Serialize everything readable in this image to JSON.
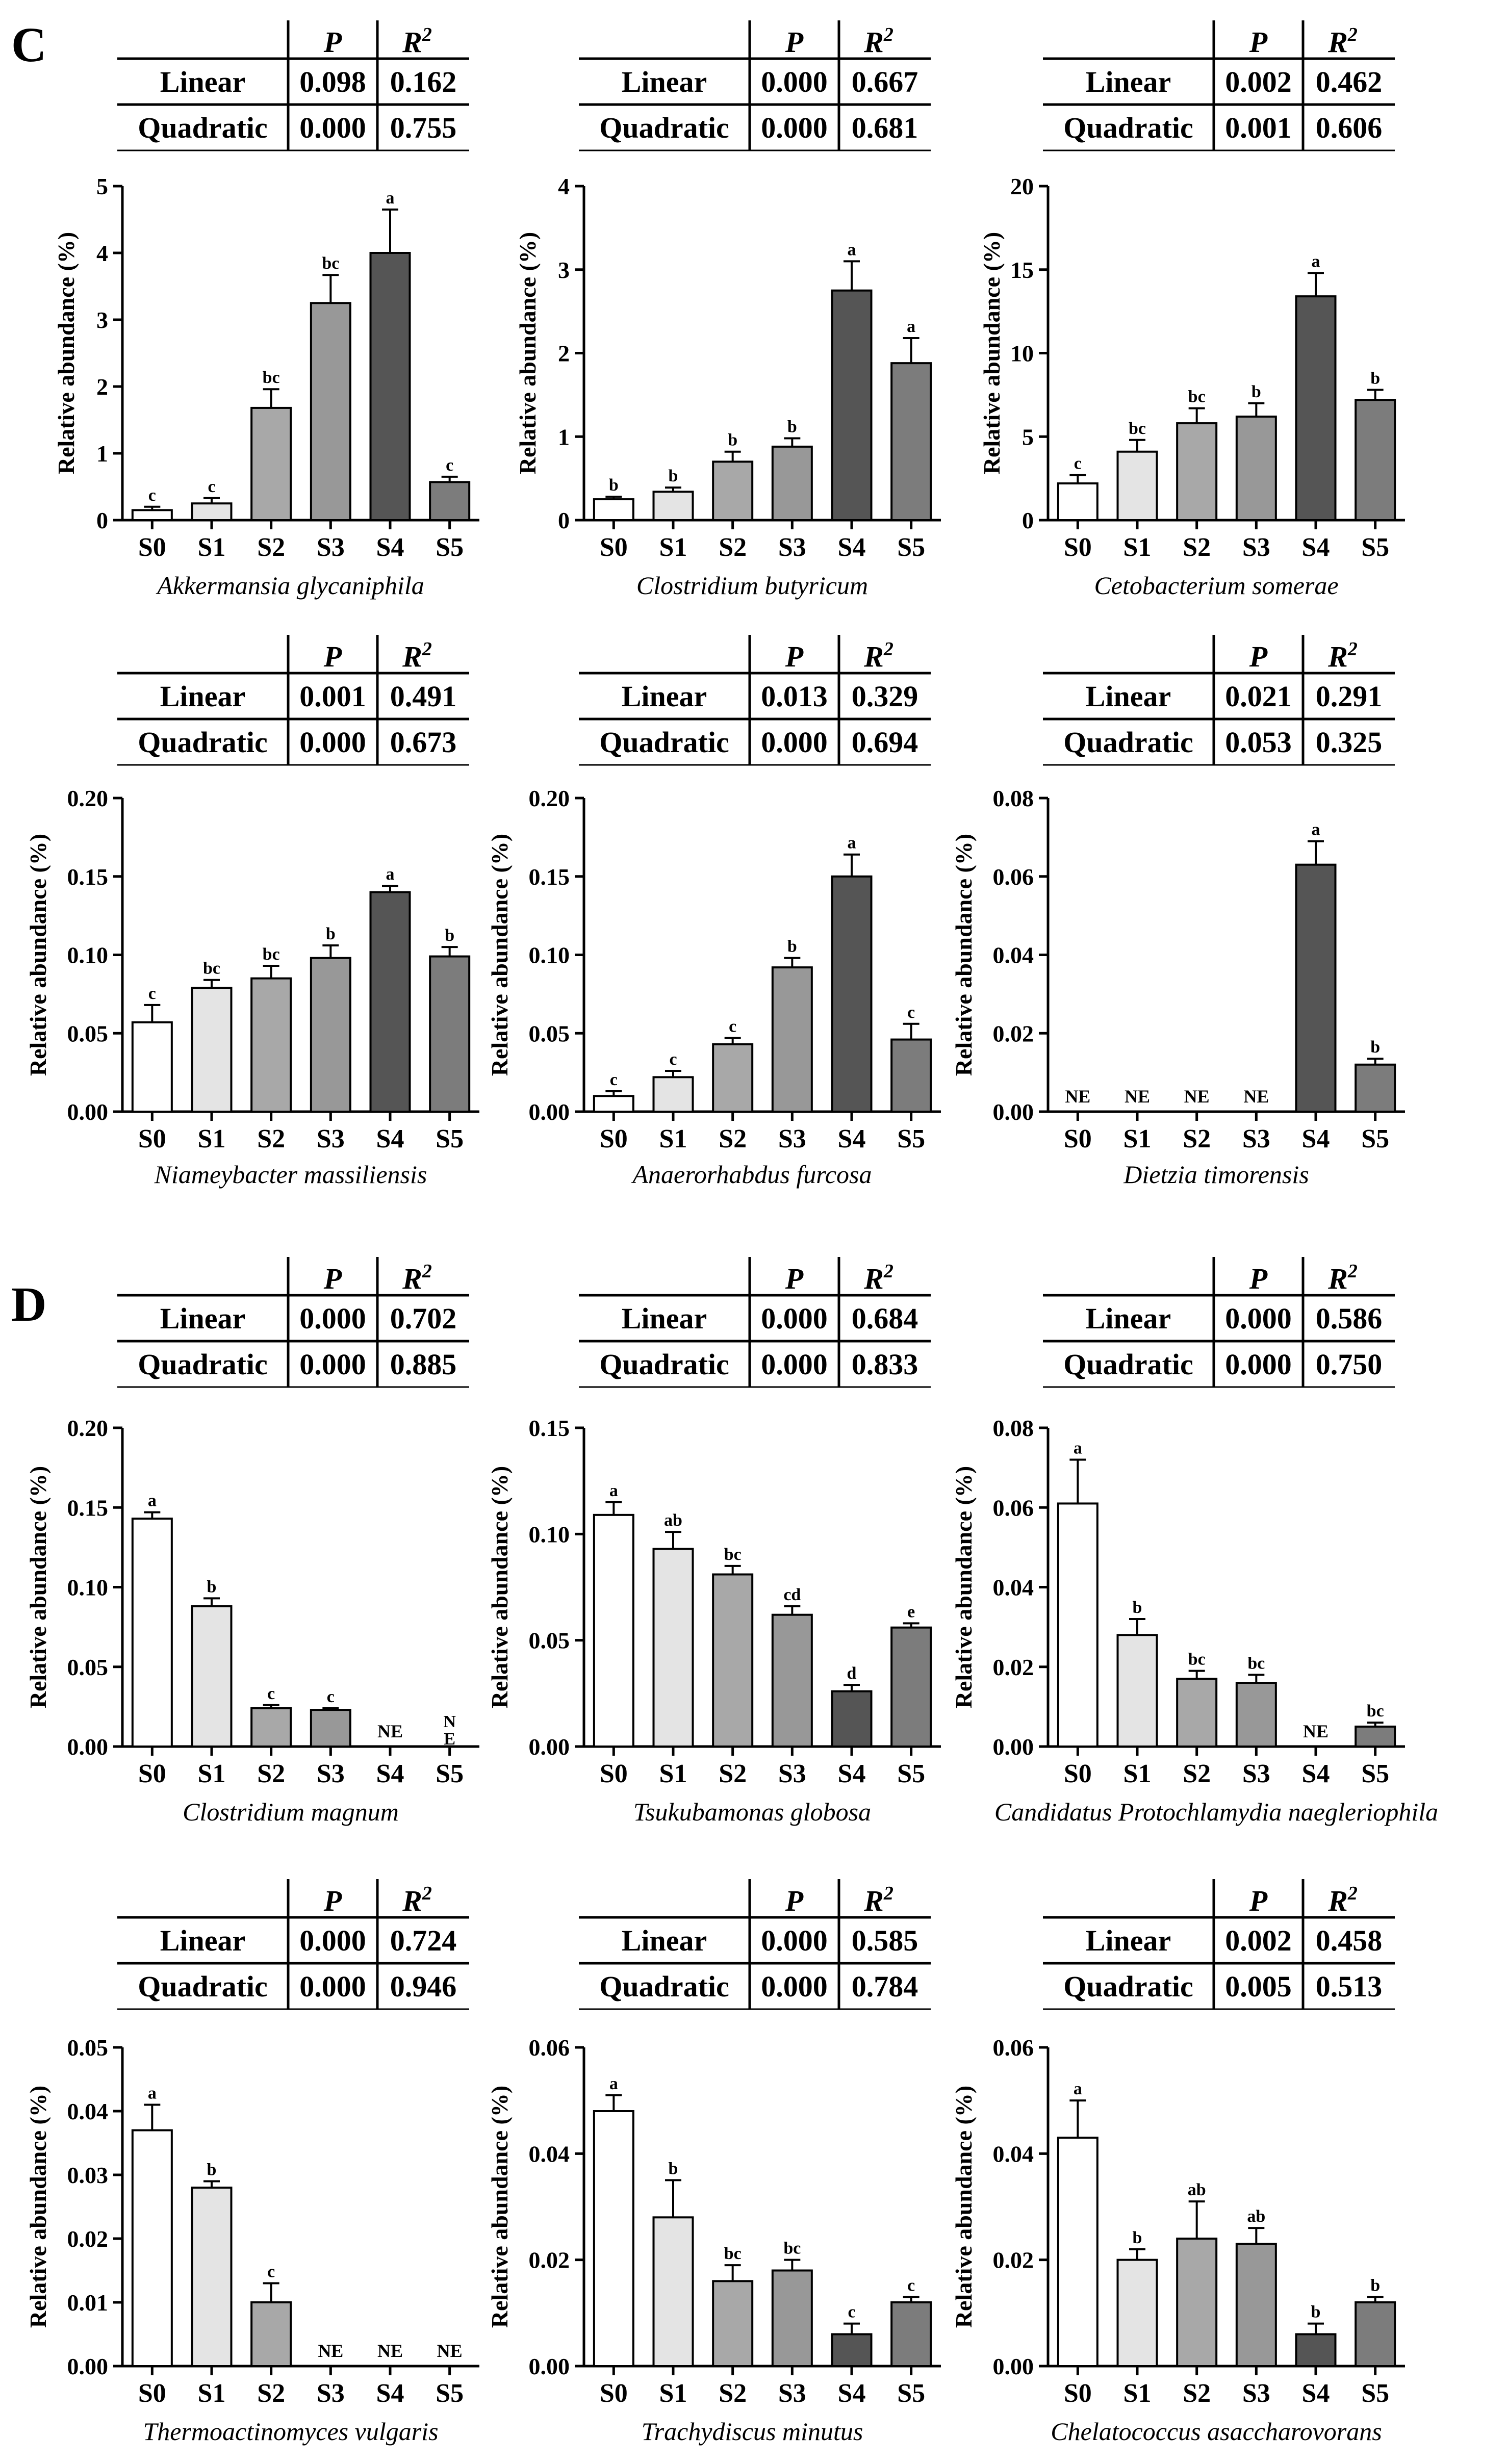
{
  "panels": [
    {
      "letter": "C",
      "charts": [
        {
          "table": {
            "header": [
              "P",
              "R2"
            ],
            "rows": [
              {
                "label": "Linear",
                "p": "0.098",
                "r2": "0.162"
              },
              {
                "label": "Quadratic",
                "p": "0.000",
                "r2": "0.755"
              }
            ]
          },
          "chart_data": {
            "type": "bar",
            "title": "Akkermansia glycaniphila",
            "ylabel": "Relative abundance (%)",
            "categories": [
              "S0",
              "S1",
              "S2",
              "S3",
              "S4",
              "S5"
            ],
            "values": [
              0.15,
              0.25,
              1.68,
              3.25,
              4.0,
              0.57
            ],
            "errors": [
              0.05,
              0.08,
              0.28,
              0.42,
              0.65,
              0.08
            ],
            "labels": [
              "c",
              "c",
              "bc",
              "bc",
              "a",
              "c"
            ],
            "ylim": [
              0,
              5
            ],
            "yticks": [
              "0",
              "1",
              "2",
              "3",
              "4",
              "5"
            ]
          }
        },
        {
          "table": {
            "header": [
              "P",
              "R2"
            ],
            "rows": [
              {
                "label": "Linear",
                "p": "0.000",
                "r2": "0.667"
              },
              {
                "label": "Quadratic",
                "p": "0.000",
                "r2": "0.681"
              }
            ]
          },
          "chart_data": {
            "type": "bar",
            "title": "Clostridium butyricum",
            "ylabel": "Relative abundance (%)",
            "categories": [
              "S0",
              "S1",
              "S2",
              "S3",
              "S4",
              "S5"
            ],
            "values": [
              0.25,
              0.34,
              0.7,
              0.88,
              2.75,
              1.88
            ],
            "errors": [
              0.03,
              0.05,
              0.12,
              0.1,
              0.35,
              0.3
            ],
            "labels": [
              "b",
              "b",
              "b",
              "b",
              "a",
              "a"
            ],
            "ylim": [
              0,
              4
            ],
            "yticks": [
              "0",
              "1",
              "2",
              "3",
              "4"
            ]
          }
        },
        {
          "table": {
            "header": [
              "P",
              "R2"
            ],
            "rows": [
              {
                "label": "Linear",
                "p": "0.002",
                "r2": "0.462"
              },
              {
                "label": "Quadratic",
                "p": "0.001",
                "r2": "0.606"
              }
            ]
          },
          "chart_data": {
            "type": "bar",
            "title": "Cetobacterium somerae",
            "ylabel": "Relative abundance (%)",
            "categories": [
              "S0",
              "S1",
              "S2",
              "S3",
              "S4",
              "S5"
            ],
            "values": [
              2.2,
              4.1,
              5.8,
              6.2,
              13.4,
              7.2
            ],
            "errors": [
              0.5,
              0.7,
              0.9,
              0.8,
              1.4,
              0.6
            ],
            "labels": [
              "c",
              "bc",
              "bc",
              "b",
              "a",
              "b"
            ],
            "ylim": [
              0,
              20
            ],
            "yticks": [
              "0",
              "5",
              "10",
              "15",
              "20"
            ]
          }
        },
        {
          "table": {
            "header": [
              "P",
              "R2"
            ],
            "rows": [
              {
                "label": "Linear",
                "p": "0.001",
                "r2": "0.491"
              },
              {
                "label": "Quadratic",
                "p": "0.000",
                "r2": "0.673"
              }
            ]
          },
          "chart_data": {
            "type": "bar",
            "title": "Niameybacter massiliensis",
            "ylabel": "Relative abundance (%)",
            "categories": [
              "S0",
              "S1",
              "S2",
              "S3",
              "S4",
              "S5"
            ],
            "values": [
              0.057,
              0.079,
              0.085,
              0.098,
              0.14,
              0.099
            ],
            "errors": [
              0.011,
              0.005,
              0.008,
              0.008,
              0.004,
              0.006
            ],
            "labels": [
              "c",
              "bc",
              "bc",
              "b",
              "a",
              "b"
            ],
            "ylim": [
              0,
              0.2
            ],
            "yticks": [
              "0.00",
              "0.05",
              "0.10",
              "0.15",
              "0.20"
            ]
          }
        },
        {
          "table": {
            "header": [
              "P",
              "R2"
            ],
            "rows": [
              {
                "label": "Linear",
                "p": "0.013",
                "r2": "0.329"
              },
              {
                "label": "Quadratic",
                "p": "0.000",
                "r2": "0.694"
              }
            ]
          },
          "chart_data": {
            "type": "bar",
            "title": "Anaerorhabdus furcosa",
            "ylabel": "Relative abundance (%)",
            "categories": [
              "S0",
              "S1",
              "S2",
              "S3",
              "S4",
              "S5"
            ],
            "values": [
              0.01,
              0.022,
              0.043,
              0.092,
              0.15,
              0.046
            ],
            "errors": [
              0.003,
              0.004,
              0.004,
              0.006,
              0.014,
              0.01
            ],
            "labels": [
              "c",
              "c",
              "c",
              "b",
              "a",
              "c"
            ],
            "ylim": [
              0,
              0.2
            ],
            "yticks": [
              "0.00",
              "0.05",
              "0.10",
              "0.15",
              "0.20"
            ]
          }
        },
        {
          "table": {
            "header": [
              "P",
              "R2"
            ],
            "rows": [
              {
                "label": "Linear",
                "p": "0.021",
                "r2": "0.291"
              },
              {
                "label": "Quadratic",
                "p": "0.053",
                "r2": "0.325"
              }
            ]
          },
          "chart_data": {
            "type": "bar",
            "title": "Dietzia timorensis",
            "ylabel": "Relative abundance (%)",
            "categories": [
              "S0",
              "S1",
              "S2",
              "S3",
              "S4",
              "S5"
            ],
            "values": [
              null,
              null,
              null,
              null,
              0.063,
              0.012
            ],
            "errors": [
              0,
              0,
              0,
              0,
              0.006,
              0.0015
            ],
            "labels": [
              "NE",
              "NE",
              "NE",
              "NE",
              "a",
              "b"
            ],
            "ylim": [
              0,
              0.08
            ],
            "yticks": [
              "0.00",
              "0.02",
              "0.04",
              "0.06",
              "0.08"
            ]
          }
        }
      ]
    },
    {
      "letter": "D",
      "charts": [
        {
          "table": {
            "header": [
              "P",
              "R2"
            ],
            "rows": [
              {
                "label": "Linear",
                "p": "0.000",
                "r2": "0.702"
              },
              {
                "label": "Quadratic",
                "p": "0.000",
                "r2": "0.885"
              }
            ]
          },
          "chart_data": {
            "type": "bar",
            "title": "Clostridium magnum",
            "ylabel": "Relative abundance (%)",
            "categories": [
              "S0",
              "S1",
              "S2",
              "S3",
              "S4",
              "S5"
            ],
            "values": [
              0.143,
              0.088,
              0.024,
              0.023,
              null,
              null
            ],
            "errors": [
              0.004,
              0.005,
              0.002,
              0.001,
              0,
              0
            ],
            "labels": [
              "a",
              "b",
              "c",
              "c",
              "NE",
              "N E"
            ],
            "ylim": [
              0,
              0.2
            ],
            "yticks": [
              "0.00",
              "0.05",
              "0.10",
              "0.15",
              "0.20"
            ]
          }
        },
        {
          "table": {
            "header": [
              "P",
              "R2"
            ],
            "rows": [
              {
                "label": "Linear",
                "p": "0.000",
                "r2": "0.684"
              },
              {
                "label": "Quadratic",
                "p": "0.000",
                "r2": "0.833"
              }
            ]
          },
          "chart_data": {
            "type": "bar",
            "title": "Tsukubamonas globosa",
            "ylabel": "Relative abundance (%)",
            "categories": [
              "S0",
              "S1",
              "S2",
              "S3",
              "S4",
              "S5"
            ],
            "values": [
              0.109,
              0.093,
              0.081,
              0.062,
              0.026,
              0.056
            ],
            "errors": [
              0.006,
              0.008,
              0.004,
              0.004,
              0.003,
              0.002
            ],
            "labels": [
              "a",
              "ab",
              "bc",
              "cd",
              "d",
              "e"
            ],
            "ylim": [
              0,
              0.15
            ],
            "yticks": [
              "0.00",
              "0.05",
              "0.10",
              "0.15"
            ]
          }
        },
        {
          "table": {
            "header": [
              "P",
              "R2"
            ],
            "rows": [
              {
                "label": "Linear",
                "p": "0.000",
                "r2": "0.586"
              },
              {
                "label": "Quadratic",
                "p": "0.000",
                "r2": "0.750"
              }
            ]
          },
          "chart_data": {
            "type": "bar",
            "title": "Candidatus Protochlamydia naegleriophila",
            "ylabel": "Relative abundance (%)",
            "categories": [
              "S0",
              "S1",
              "S2",
              "S3",
              "S4",
              "S5"
            ],
            "values": [
              0.061,
              0.028,
              0.017,
              0.016,
              null,
              0.005
            ],
            "errors": [
              0.011,
              0.004,
              0.002,
              0.002,
              0,
              0.001
            ],
            "labels": [
              "a",
              "b",
              "bc",
              "bc",
              "NE",
              "bc"
            ],
            "ylim": [
              0,
              0.08
            ],
            "yticks": [
              "0.00",
              "0.02",
              "0.04",
              "0.06",
              "0.08"
            ]
          }
        },
        {
          "table": {
            "header": [
              "P",
              "R2"
            ],
            "rows": [
              {
                "label": "Linear",
                "p": "0.000",
                "r2": "0.724"
              },
              {
                "label": "Quadratic",
                "p": "0.000",
                "r2": "0.946"
              }
            ]
          },
          "chart_data": {
            "type": "bar",
            "title": "Thermoactinomyces vulgaris",
            "ylabel": "Relative abundance (%)",
            "categories": [
              "S0",
              "S1",
              "S2",
              "S3",
              "S4",
              "S5"
            ],
            "values": [
              0.037,
              0.028,
              0.01,
              null,
              null,
              null
            ],
            "errors": [
              0.004,
              0.001,
              0.003,
              0,
              0,
              0
            ],
            "labels": [
              "a",
              "b",
              "c",
              "NE",
              "NE",
              "NE"
            ],
            "ylim": [
              0,
              0.05
            ],
            "yticks": [
              "0.00",
              "0.01",
              "0.02",
              "0.03",
              "0.04",
              "0.05"
            ]
          }
        },
        {
          "table": {
            "header": [
              "P",
              "R2"
            ],
            "rows": [
              {
                "label": "Linear",
                "p": "0.000",
                "r2": "0.585"
              },
              {
                "label": "Quadratic",
                "p": "0.000",
                "r2": "0.784"
              }
            ]
          },
          "chart_data": {
            "type": "bar",
            "title": "Trachydiscus minutus",
            "ylabel": "Relative abundance (%)",
            "categories": [
              "S0",
              "S1",
              "S2",
              "S3",
              "S4",
              "S5"
            ],
            "values": [
              0.048,
              0.028,
              0.016,
              0.018,
              0.006,
              0.012
            ],
            "errors": [
              0.003,
              0.007,
              0.003,
              0.002,
              0.002,
              0.001
            ],
            "labels": [
              "a",
              "b",
              "bc",
              "bc",
              "c",
              "c"
            ],
            "ylim": [
              0,
              0.06
            ],
            "yticks": [
              "0.00",
              "0.02",
              "0.04",
              "0.06"
            ]
          }
        },
        {
          "table": {
            "header": [
              "P",
              "R2"
            ],
            "rows": [
              {
                "label": "Linear",
                "p": "0.002",
                "r2": "0.458"
              },
              {
                "label": "Quadratic",
                "p": "0.005",
                "r2": "0.513"
              }
            ]
          },
          "chart_data": {
            "type": "bar",
            "title": "Chelatococcus asaccharovorans",
            "ylabel": "Relative abundance (%)",
            "categories": [
              "S0",
              "S1",
              "S2",
              "S3",
              "S4",
              "S5"
            ],
            "values": [
              0.043,
              0.02,
              0.024,
              0.023,
              0.006,
              0.012
            ],
            "errors": [
              0.007,
              0.002,
              0.007,
              0.003,
              0.002,
              0.001
            ],
            "labels": [
              "a",
              "b",
              "ab",
              "ab",
              "b",
              "b"
            ],
            "ylim": [
              0,
              0.06
            ],
            "yticks": [
              "0.00",
              "0.02",
              "0.04",
              "0.06"
            ]
          }
        }
      ]
    }
  ],
  "colors": {
    "bars": [
      "#ffffff",
      "#e4e4e4",
      "#a8a8a8",
      "#989898",
      "#555555",
      "#7c7c7c"
    ],
    "stroke": "#000000"
  }
}
